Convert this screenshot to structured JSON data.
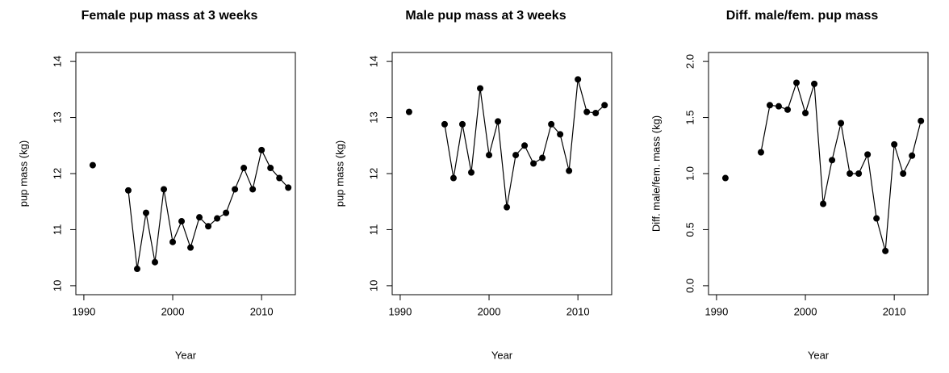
{
  "chart_data": [
    {
      "type": "line",
      "title": "Female pup mass at 3 weeks",
      "x_label": "Year",
      "y_label": "pup mass (kg)",
      "color": "#000000",
      "x": [
        1991,
        1992,
        1993,
        1994,
        1995,
        1996,
        1997,
        1998,
        1999,
        2000,
        2001,
        2002,
        2003,
        2004,
        2005,
        2006,
        2007,
        2008,
        2009,
        2010,
        2011,
        2012,
        2013
      ],
      "values": [
        12.15,
        null,
        null,
        null,
        11.7,
        10.3,
        11.3,
        10.42,
        11.72,
        10.78,
        11.15,
        10.68,
        11.22,
        11.06,
        11.2,
        11.3,
        11.72,
        12.1,
        11.72,
        12.42,
        12.1,
        11.92,
        11.75
      ],
      "xlim": [
        1989.1,
        2013.8
      ],
      "xticks": [
        1990,
        2000,
        2010
      ],
      "ylim": [
        9.84,
        14.16
      ],
      "yticks": [
        10,
        11,
        12,
        13,
        14
      ]
    },
    {
      "type": "line",
      "title": "Male pup mass at 3 weeks",
      "x_label": "Year",
      "y_label": "pup mass (kg)",
      "color": "#000000",
      "x": [
        1991,
        1992,
        1993,
        1994,
        1995,
        1996,
        1997,
        1998,
        1999,
        2000,
        2001,
        2002,
        2003,
        2004,
        2005,
        2006,
        2007,
        2008,
        2009,
        2010,
        2011,
        2012,
        2013
      ],
      "values": [
        13.1,
        null,
        null,
        null,
        12.88,
        11.92,
        12.88,
        12.02,
        13.52,
        12.33,
        12.93,
        11.4,
        12.33,
        12.5,
        12.18,
        12.28,
        12.88,
        12.7,
        12.05,
        13.68,
        13.1,
        13.08,
        13.22
      ],
      "xlim": [
        1989.1,
        2013.8
      ],
      "xticks": [
        1990,
        2000,
        2010
      ],
      "ylim": [
        9.84,
        14.16
      ],
      "yticks": [
        10,
        11,
        12,
        13,
        14
      ]
    },
    {
      "type": "line",
      "title": "Diff. male/fem. pup mass",
      "x_label": "Year",
      "y_label": "Diff. male/fem. mass (kg)",
      "color": "#000000",
      "x": [
        1991,
        1992,
        1993,
        1994,
        1995,
        1996,
        1997,
        1998,
        1999,
        2000,
        2001,
        2002,
        2003,
        2004,
        2005,
        2006,
        2007,
        2008,
        2009,
        2010,
        2011,
        2012,
        2013
      ],
      "values": [
        0.96,
        null,
        null,
        null,
        1.19,
        1.61,
        1.6,
        1.57,
        1.81,
        1.54,
        1.8,
        0.73,
        1.12,
        1.45,
        1.0,
        1.0,
        1.17,
        0.6,
        0.31,
        1.26,
        1.0,
        1.16,
        1.47
      ],
      "xlim": [
        1989.1,
        2013.8
      ],
      "xticks": [
        1990,
        2000,
        2010
      ],
      "ylim": [
        -0.08,
        2.08
      ],
      "yticks": [
        {
          "value": 0,
          "label": "0.0"
        },
        0.5,
        {
          "value": 1,
          "label": "1.0"
        },
        1.5,
        {
          "value": 2,
          "label": "2.0"
        }
      ]
    }
  ]
}
